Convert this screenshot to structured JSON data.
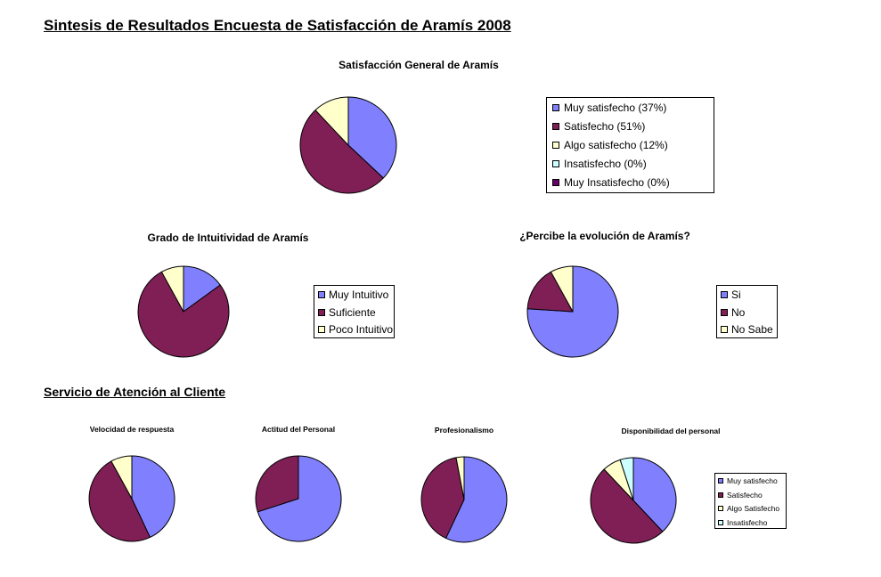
{
  "page": {
    "title": "Sintesis de Resultados Encuesta de Satisfacción de Aramís 2008",
    "section_title": "Servicio de Atención al Cliente"
  },
  "colors": {
    "blue": "#8080ff",
    "maroon": "#7f1f56",
    "cream": "#ffffcc",
    "cyan": "#ccffff",
    "purple": "#660066"
  },
  "chart_data": [
    {
      "type": "pie",
      "title": "Satisfacción General de Aramís",
      "categories": [
        "Muy satisfecho (37%)",
        "Satisfecho (51%)",
        "Algo satisfecho (12%)",
        "Insatisfecho (0%)",
        "Muy Insatisfecho (0%)"
      ],
      "values": [
        37,
        51,
        12,
        0,
        0
      ],
      "colors": [
        "#8080ff",
        "#7f1f56",
        "#ffffcc",
        "#ccffff",
        "#660066"
      ],
      "legend": "right"
    },
    {
      "type": "pie",
      "title": "Grado de Intuitividad de Aramís",
      "categories": [
        "Muy Intuitivo",
        "Suficiente",
        "Poco Intuitivo"
      ],
      "values": [
        15,
        77,
        8
      ],
      "colors": [
        "#8080ff",
        "#7f1f56",
        "#ffffcc"
      ],
      "legend": "right"
    },
    {
      "type": "pie",
      "title": "¿Percibe la evolución de Aramís?",
      "categories": [
        "Si",
        "No",
        "No Sabe"
      ],
      "values": [
        76,
        16,
        8
      ],
      "colors": [
        "#8080ff",
        "#7f1f56",
        "#ffffcc"
      ],
      "legend": "right"
    },
    {
      "type": "pie",
      "title": "Velocidad de respuesta",
      "categories": [
        "Muy satisfecho",
        "Satisfecho",
        "Algo Satisfecho",
        "Insatisfecho"
      ],
      "values": [
        43,
        49,
        8,
        0
      ],
      "colors": [
        "#8080ff",
        "#7f1f56",
        "#ffffcc",
        "#ccffff"
      ]
    },
    {
      "type": "pie",
      "title": "Actitud del Personal",
      "categories": [
        "Muy satisfecho",
        "Satisfecho",
        "Algo Satisfecho",
        "Insatisfecho"
      ],
      "values": [
        70,
        30,
        0,
        0
      ],
      "colors": [
        "#8080ff",
        "#7f1f56",
        "#ffffcc",
        "#ccffff"
      ]
    },
    {
      "type": "pie",
      "title": "Profesionalismo",
      "categories": [
        "Muy satisfecho",
        "Satisfecho",
        "Algo Satisfecho",
        "Insatisfecho"
      ],
      "values": [
        57,
        40,
        3,
        0
      ],
      "colors": [
        "#8080ff",
        "#7f1f56",
        "#ffffcc",
        "#ccffff"
      ]
    },
    {
      "type": "pie",
      "title": "Disponibilidad del personal",
      "categories": [
        "Muy satisfecho",
        "Satisfecho",
        "Algo Satisfecho",
        "Insatisfecho"
      ],
      "values": [
        38,
        50,
        7,
        5
      ],
      "colors": [
        "#8080ff",
        "#7f1f56",
        "#ffffcc",
        "#ccffff"
      ],
      "legend": "right"
    }
  ]
}
